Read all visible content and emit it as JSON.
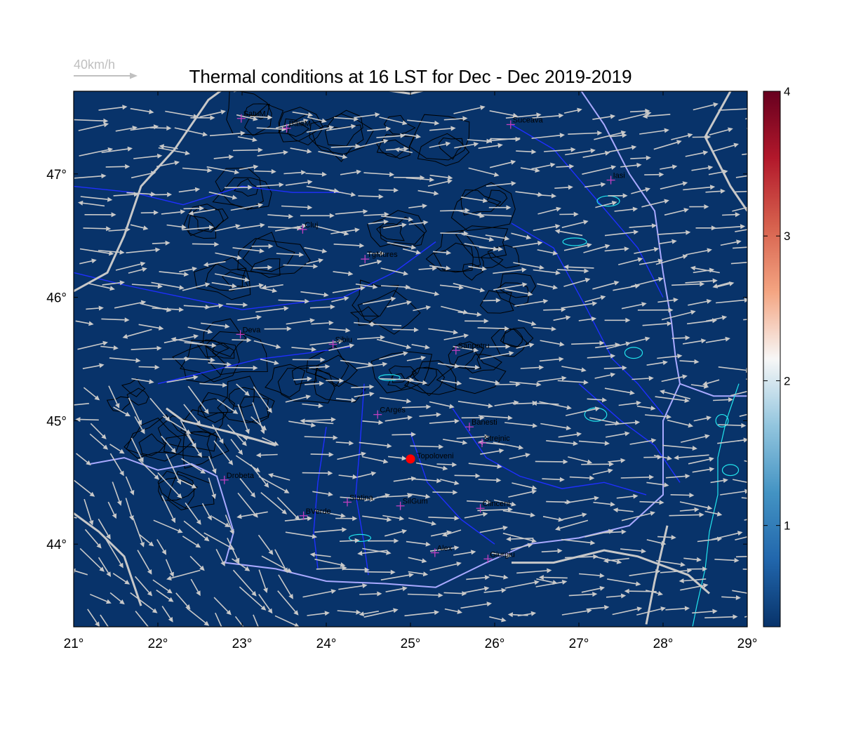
{
  "title": "Thermal conditions at 16 LST for Dec - Dec  2019-2019",
  "reference_vector": {
    "label": "40km/h",
    "speed_kmh": 40
  },
  "map": {
    "lon_range": [
      21,
      29
    ],
    "lat_range": [
      43.33,
      47.67
    ],
    "lon_ticks": [
      {
        "value": 21,
        "label": "21°"
      },
      {
        "value": 22,
        "label": "22°"
      },
      {
        "value": 23,
        "label": "23°"
      },
      {
        "value": 24,
        "label": "24°"
      },
      {
        "value": 25,
        "label": "25°"
      },
      {
        "value": 26,
        "label": "26°"
      },
      {
        "value": 27,
        "label": "27°"
      },
      {
        "value": 28,
        "label": "28°"
      },
      {
        "value": 29,
        "label": "29°"
      }
    ],
    "lat_ticks": [
      {
        "value": 44,
        "label": "44°"
      },
      {
        "value": 45,
        "label": "45°"
      },
      {
        "value": 46,
        "label": "46°"
      },
      {
        "value": 47,
        "label": "47°"
      }
    ],
    "field_color": "#08336a",
    "colors": {
      "rivers": "#1f2fff",
      "borders": "#c8c8c8",
      "danube_border": "#a9a9ff",
      "lakes_coast": "#22e6ee",
      "contours": "#000000",
      "vectors": "#c9c9c9",
      "stations": "#c040c0",
      "target": "#ff0000"
    }
  },
  "stations": [
    {
      "name": "SatuM",
      "lon": 22.99,
      "lat": 47.45
    },
    {
      "name": "BaiaM",
      "lon": 23.53,
      "lat": 47.37
    },
    {
      "name": "Suceava",
      "lon": 26.19,
      "lat": 47.4
    },
    {
      "name": "Iasi",
      "lon": 27.38,
      "lat": 46.95
    },
    {
      "name": "Cluj",
      "lon": 23.72,
      "lat": 46.55
    },
    {
      "name": "TgMures",
      "lon": 24.46,
      "lat": 46.31
    },
    {
      "name": "Deva",
      "lon": 22.98,
      "lat": 45.7
    },
    {
      "name": "Sibiu",
      "lon": 24.08,
      "lat": 45.62
    },
    {
      "name": "Sanpetru",
      "lon": 25.54,
      "lat": 45.57
    },
    {
      "name": "CArges",
      "lon": 24.61,
      "lat": 45.05
    },
    {
      "name": "Banesti",
      "lon": 25.7,
      "lat": 44.95
    },
    {
      "name": "Strejnic",
      "lon": 25.85,
      "lat": 44.82
    },
    {
      "name": "Drobeta",
      "lon": 22.79,
      "lat": 44.52
    },
    {
      "name": "Slatina",
      "lon": 24.25,
      "lat": 44.34
    },
    {
      "name": "SilGum",
      "lon": 24.88,
      "lat": 44.31
    },
    {
      "name": "Clinceni",
      "lon": 25.83,
      "lat": 44.29
    },
    {
      "name": "BVerde",
      "lon": 23.73,
      "lat": 44.23
    },
    {
      "name": "Alex",
      "lon": 25.29,
      "lat": 43.93
    },
    {
      "name": "Giurgiu",
      "lon": 25.92,
      "lat": 43.88
    }
  ],
  "target_site": {
    "name": "Topoloveni",
    "lon": 25.0,
    "lat": 44.69
  },
  "colorbar": {
    "min": 0.3,
    "max": 4.0,
    "ticks": [
      {
        "value": 1,
        "label": "1"
      },
      {
        "value": 2,
        "label": "2"
      },
      {
        "value": 3,
        "label": "3"
      },
      {
        "value": 4,
        "label": "4"
      }
    ],
    "stops": [
      "#08336a",
      "#2166ac",
      "#4393c3",
      "#92c5de",
      "#f7f7f7",
      "#f4a582",
      "#d6604d",
      "#b2182b",
      "#67001f"
    ]
  }
}
